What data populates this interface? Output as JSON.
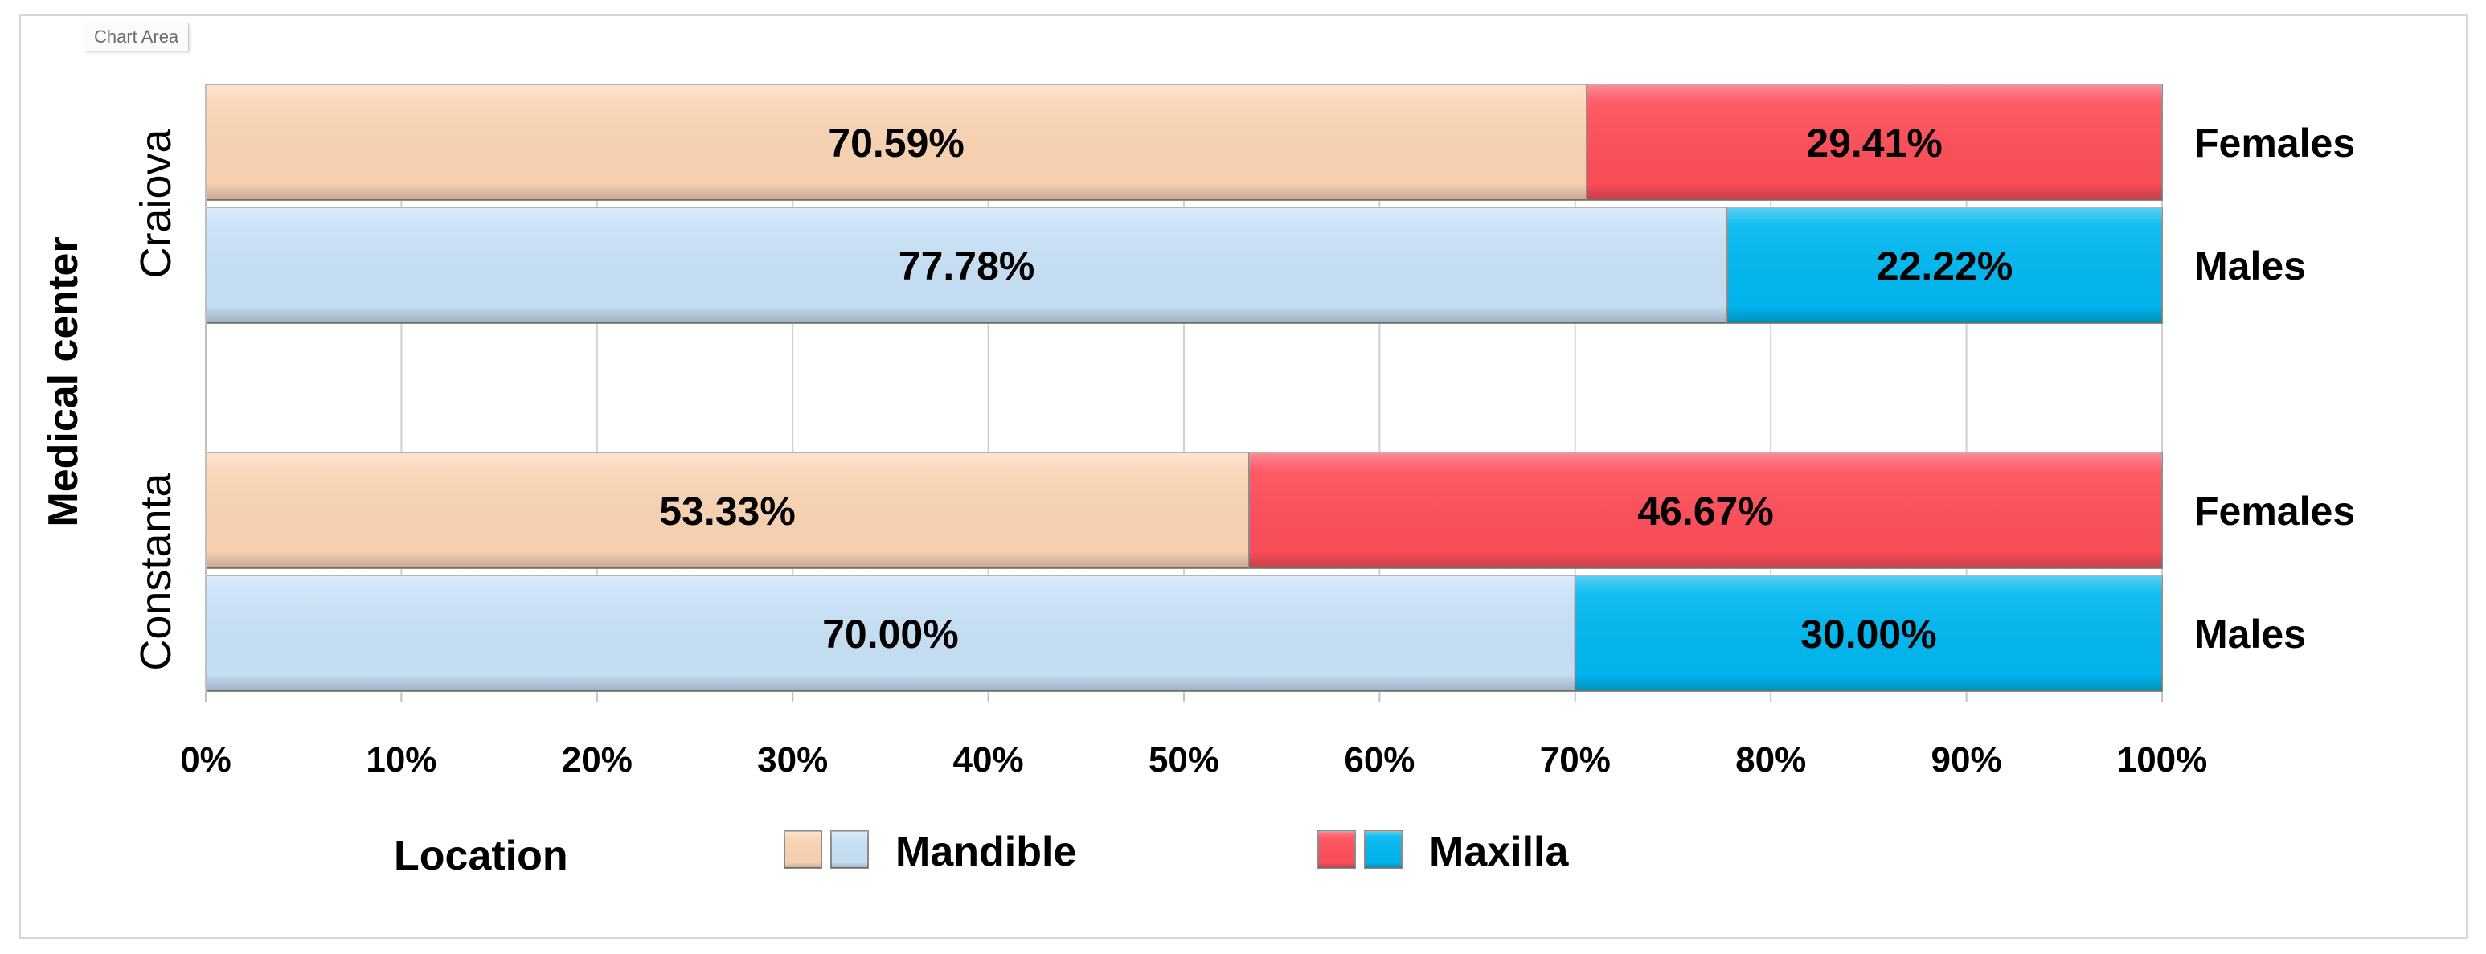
{
  "tooltip": "Chart Area",
  "chart_data": {
    "type": "bar",
    "orientation": "horizontal",
    "stacked": "100%",
    "ylabel": "Medical center",
    "x_ticks": [
      "0%",
      "10%",
      "20%",
      "30%",
      "40%",
      "50%",
      "60%",
      "70%",
      "80%",
      "90%",
      "100%"
    ],
    "xlim": [
      0,
      100
    ],
    "grid": true,
    "groups": [
      {
        "center": "Craiova",
        "rows": [
          {
            "gender": "Females",
            "mandible": 70.59,
            "maxilla": 29.41,
            "mandible_label": "70.59%",
            "maxilla_label": "29.41%",
            "mandible_color": "#FBD5B5",
            "maxilla_color": "#FF4F5A"
          },
          {
            "gender": "Males",
            "mandible": 77.78,
            "maxilla": 22.22,
            "mandible_label": "77.78%",
            "maxilla_label": "22.22%",
            "mandible_color": "#C9E2F7",
            "maxilla_color": "#00B8F0"
          }
        ]
      },
      {
        "center": "Constanta",
        "rows": [
          {
            "gender": "Females",
            "mandible": 53.33,
            "maxilla": 46.67,
            "mandible_label": "53.33%",
            "maxilla_label": "46.67%",
            "mandible_color": "#FBD5B5",
            "maxilla_color": "#FF4F5A"
          },
          {
            "gender": "Males",
            "mandible": 70.0,
            "maxilla": 30.0,
            "mandible_label": "70.00%",
            "maxilla_label": "30.00%",
            "mandible_color": "#C9E2F7",
            "maxilla_color": "#00B8F0"
          }
        ]
      }
    ],
    "legend": {
      "title": "Location",
      "placement": "bottom",
      "items": [
        {
          "label": "Mandible",
          "colors": [
            "#FBD5B5",
            "#C9E2F7"
          ]
        },
        {
          "label": "Maxilla",
          "colors": [
            "#FF4F5A",
            "#00B8F0"
          ]
        }
      ]
    }
  }
}
